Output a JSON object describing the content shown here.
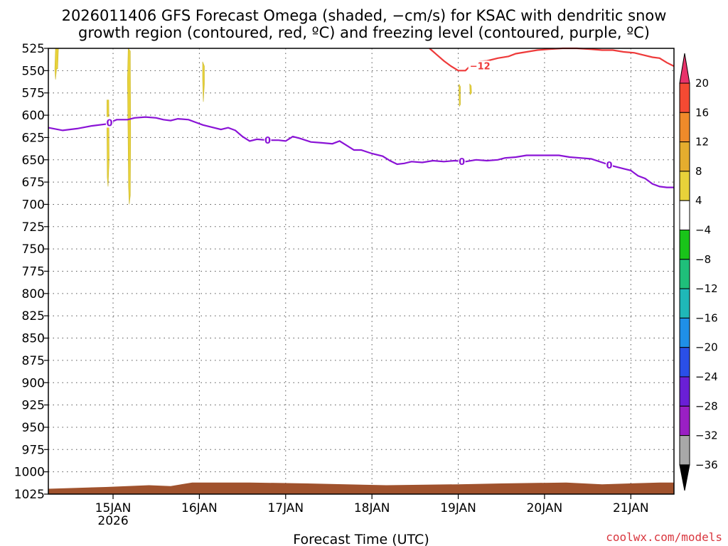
{
  "chart_data": {
    "type": "contour",
    "title_lines": [
      "2026011406 GFS Forecast Omega (shaded, −cm/s) for KSAC with dendritic snow",
      "growth region (contoured, red, ºC) and freezing level (contoured, purple, ºC)"
    ],
    "xlabel": "Forecast Time (UTC)",
    "credit": "coolwx.com/models",
    "y_ticks": [
      525,
      550,
      575,
      600,
      625,
      650,
      675,
      700,
      725,
      750,
      775,
      800,
      825,
      850,
      875,
      900,
      925,
      950,
      975,
      1000,
      1025
    ],
    "ylim": [
      525,
      1025
    ],
    "x_start_hours": 6,
    "x_end_hours": 180,
    "x_ticks": [
      {
        "hours": 24,
        "label": "15JAN",
        "sublabel": "2026"
      },
      {
        "hours": 48,
        "label": "16JAN",
        "sublabel": ""
      },
      {
        "hours": 72,
        "label": "17JAN",
        "sublabel": ""
      },
      {
        "hours": 96,
        "label": "18JAN",
        "sublabel": ""
      },
      {
        "hours": 120,
        "label": "19JAN",
        "sublabel": ""
      },
      {
        "hours": 144,
        "label": "20JAN",
        "sublabel": ""
      },
      {
        "hours": 168,
        "label": "21JAN",
        "sublabel": ""
      }
    ],
    "colorbar": {
      "levels": [
        20,
        16,
        12,
        8,
        4,
        -4,
        -8,
        -12,
        -16,
        -20,
        -24,
        -28,
        -32,
        -36
      ],
      "colors": [
        "#e8336a",
        "#f44a33",
        "#ef8a2a",
        "#e5ad2e",
        "#e8d23a",
        "#ffffff",
        "#19c419",
        "#1fbf7a",
        "#1fb8b8",
        "#1f8fe8",
        "#2a4fe8",
        "#6a1fd6",
        "#9a1fc4",
        "#a8a8a8",
        "#000000"
      ]
    },
    "freezing_level": {
      "color": "#8a13d6",
      "label": "0",
      "label_hours": [
        23,
        67,
        121,
        162
      ],
      "points": [
        [
          6,
          614
        ],
        [
          10,
          617
        ],
        [
          14,
          615
        ],
        [
          18,
          612
        ],
        [
          22,
          610
        ],
        [
          25,
          605
        ],
        [
          28,
          605
        ],
        [
          30,
          603
        ],
        [
          33,
          602
        ],
        [
          36,
          603
        ],
        [
          38,
          605
        ],
        [
          40,
          606
        ],
        [
          42,
          604
        ],
        [
          45,
          605
        ],
        [
          47,
          608
        ],
        [
          49,
          611
        ],
        [
          52,
          614
        ],
        [
          54,
          616
        ],
        [
          56,
          614
        ],
        [
          58,
          617
        ],
        [
          60,
          624
        ],
        [
          62,
          629
        ],
        [
          64,
          627
        ],
        [
          67,
          628
        ],
        [
          70,
          628
        ],
        [
          72,
          629
        ],
        [
          74,
          624
        ],
        [
          76,
          626
        ],
        [
          79,
          630
        ],
        [
          82,
          631
        ],
        [
          85,
          632
        ],
        [
          87,
          629
        ],
        [
          89,
          634
        ],
        [
          91,
          639
        ],
        [
          93,
          639
        ],
        [
          96,
          643
        ],
        [
          99,
          646
        ],
        [
          101,
          651
        ],
        [
          103,
          655
        ],
        [
          105,
          654
        ],
        [
          107,
          652
        ],
        [
          110,
          653
        ],
        [
          113,
          651
        ],
        [
          116,
          652
        ],
        [
          119,
          651
        ],
        [
          122,
          652
        ],
        [
          125,
          650
        ],
        [
          128,
          651
        ],
        [
          131,
          650
        ],
        [
          133,
          648
        ],
        [
          136,
          647
        ],
        [
          139,
          645
        ],
        [
          142,
          645
        ],
        [
          145,
          645
        ],
        [
          148,
          645
        ],
        [
          151,
          647
        ],
        [
          154,
          648
        ],
        [
          157,
          649
        ],
        [
          160,
          653
        ],
        [
          163,
          657
        ],
        [
          166,
          660
        ],
        [
          168,
          662
        ],
        [
          170,
          668
        ],
        [
          172,
          671
        ],
        [
          174,
          677
        ],
        [
          176,
          680
        ],
        [
          178,
          681
        ],
        [
          180,
          681
        ]
      ]
    },
    "dgz_contour": {
      "color": "#ee3a3a",
      "label": "−12",
      "label_hours": [
        123
      ],
      "points": [
        [
          112,
          525
        ],
        [
          114,
          532
        ],
        [
          116,
          539
        ],
        [
          118,
          545
        ],
        [
          120,
          550
        ],
        [
          122,
          550
        ],
        [
          123,
          546
        ],
        [
          125,
          540
        ],
        [
          128,
          539
        ],
        [
          131,
          536
        ],
        [
          134,
          534
        ],
        [
          136,
          531
        ],
        [
          139,
          529
        ],
        [
          142,
          527
        ],
        [
          145,
          526
        ],
        [
          149,
          525
        ],
        [
          153,
          525
        ],
        [
          157,
          526
        ],
        [
          160,
          527
        ],
        [
          163,
          527
        ],
        [
          166,
          529
        ],
        [
          169,
          530
        ],
        [
          171,
          532
        ],
        [
          174,
          535
        ],
        [
          176,
          536
        ],
        [
          178,
          541
        ],
        [
          180,
          545
        ]
      ]
    },
    "omega_patches": [
      {
        "level": 4,
        "points": [
          [
            8.0,
            525
          ],
          [
            8.8,
            525
          ],
          [
            8.6,
            548
          ],
          [
            8.3,
            548
          ],
          [
            8.0,
            560
          ],
          [
            7.8,
            548
          ]
        ]
      },
      {
        "level": 4,
        "points": [
          [
            22.3,
            583
          ],
          [
            22.8,
            583
          ],
          [
            22.9,
            650
          ],
          [
            22.6,
            680
          ],
          [
            22.4,
            670
          ],
          [
            22.3,
            620
          ]
        ]
      },
      {
        "level": 4,
        "points": [
          [
            28.2,
            525
          ],
          [
            28.8,
            528
          ],
          [
            28.9,
            620
          ],
          [
            28.8,
            690
          ],
          [
            28.5,
            700
          ],
          [
            28.3,
            680
          ],
          [
            28.1,
            600
          ],
          [
            28.0,
            560
          ]
        ]
      },
      {
        "level": 4,
        "points": [
          [
            48.9,
            540
          ],
          [
            49.4,
            545
          ],
          [
            49.4,
            565
          ],
          [
            49.1,
            585
          ],
          [
            48.9,
            560
          ]
        ]
      },
      {
        "level": 4,
        "points": [
          [
            120.2,
            565
          ],
          [
            120.6,
            568
          ],
          [
            120.6,
            588
          ],
          [
            120.3,
            590
          ],
          [
            120.2,
            578
          ]
        ]
      },
      {
        "level": 4,
        "points": [
          [
            123.2,
            565
          ],
          [
            123.6,
            567
          ],
          [
            123.7,
            575
          ],
          [
            123.3,
            577
          ]
        ]
      }
    ],
    "terrain": {
      "color": "#a0522d",
      "points": [
        [
          6,
          1019
        ],
        [
          14,
          1018
        ],
        [
          22,
          1017
        ],
        [
          34,
          1015
        ],
        [
          40,
          1016
        ],
        [
          46,
          1012
        ],
        [
          62,
          1012
        ],
        [
          78,
          1013
        ],
        [
          100,
          1015
        ],
        [
          120,
          1014
        ],
        [
          132,
          1013
        ],
        [
          150,
          1012
        ],
        [
          160,
          1014
        ],
        [
          176,
          1012
        ],
        [
          180,
          1012
        ]
      ]
    }
  }
}
